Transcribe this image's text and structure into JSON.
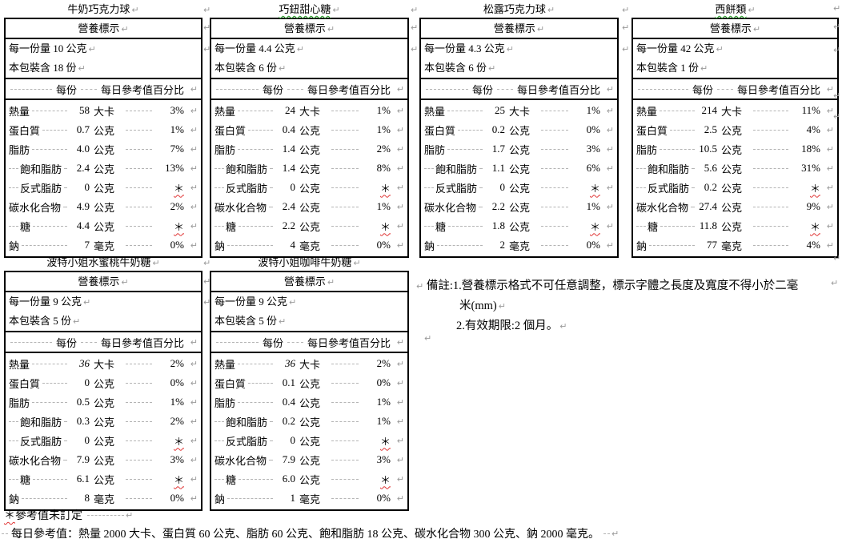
{
  "ui": {
    "pilcrow": "↵"
  },
  "labels": [
    {
      "title": "牛奶巧克力球",
      "title_grammar": false,
      "header": "營養標示",
      "serving_size": "每一份量 10 公克",
      "servings": "本包裝含 18 份",
      "col_per_serving": "每份",
      "col_daily_value": "每日參考值百分比",
      "rows": [
        {
          "name": "熱量",
          "value": "58",
          "unit": "大卡",
          "dv": "3%"
        },
        {
          "name": "蛋白質",
          "value": "0.7",
          "unit": "公克",
          "dv": "1%"
        },
        {
          "name": "脂肪",
          "value": "4.0",
          "unit": "公克",
          "dv": "7%"
        },
        {
          "name": "飽和脂肪",
          "value": "2.4",
          "unit": "公克",
          "dv": "13%",
          "indent": true
        },
        {
          "name": "反式脂肪",
          "value": "0",
          "unit": "公克",
          "dv": "＊",
          "indent": true,
          "star": true
        },
        {
          "name": "碳水化合物",
          "value": "4.9",
          "unit": "公克",
          "dv": "2%"
        },
        {
          "name": "糖",
          "value": "4.4",
          "unit": "公克",
          "dv": "＊",
          "indent": true,
          "star": true
        },
        {
          "name": "鈉",
          "value": "7",
          "unit": "毫克",
          "dv": "0%"
        }
      ]
    },
    {
      "title": "巧鈕甜心糖",
      "title_grammar": true,
      "header": "營養標示",
      "serving_size": "每一份量 4.4 公克",
      "servings": "本包裝含 6 份",
      "col_per_serving": "每份",
      "col_daily_value": "每日參考值百分比",
      "rows": [
        {
          "name": "熱量",
          "value": "24",
          "unit": "大卡",
          "dv": "1%"
        },
        {
          "name": "蛋白質",
          "value": "0.4",
          "unit": "公克",
          "dv": "1%"
        },
        {
          "name": "脂肪",
          "value": "1.4",
          "unit": "公克",
          "dv": "2%"
        },
        {
          "name": "飽和脂肪",
          "value": "1.4",
          "unit": "公克",
          "dv": "8%",
          "indent": true
        },
        {
          "name": "反式脂肪",
          "value": "0",
          "unit": "公克",
          "dv": "＊",
          "indent": true,
          "star": true
        },
        {
          "name": "碳水化合物",
          "value": "2.4",
          "unit": "公克",
          "dv": "1%"
        },
        {
          "name": "糖",
          "value": "2.2",
          "unit": "公克",
          "dv": "＊",
          "indent": true,
          "star": true
        },
        {
          "name": "鈉",
          "value": "4",
          "unit": "毫克",
          "dv": "0%"
        }
      ]
    },
    {
      "title": "松露巧克力球",
      "title_grammar": false,
      "header": "營養標示",
      "serving_size": "每一份量 4.3 公克",
      "servings": "本包裝含 6 份",
      "col_per_serving": "每份",
      "col_daily_value": "每日參考值百分比",
      "rows": [
        {
          "name": "熱量",
          "value": "25",
          "unit": "大卡",
          "dv": "1%"
        },
        {
          "name": "蛋白質",
          "value": "0.2",
          "unit": "公克",
          "dv": "0%"
        },
        {
          "name": "脂肪",
          "value": "1.7",
          "unit": "公克",
          "dv": "3%"
        },
        {
          "name": "飽和脂肪",
          "value": "1.1",
          "unit": "公克",
          "dv": "6%",
          "indent": true
        },
        {
          "name": "反式脂肪",
          "value": "0",
          "unit": "公克",
          "dv": "＊",
          "indent": true,
          "star": true
        },
        {
          "name": "碳水化合物",
          "value": "2.2",
          "unit": "公克",
          "dv": "1%"
        },
        {
          "name": "糖",
          "value": "1.8",
          "unit": "公克",
          "dv": "＊",
          "indent": true,
          "star": true
        },
        {
          "name": "鈉",
          "value": "2",
          "unit": "毫克",
          "dv": "0%"
        }
      ]
    },
    {
      "title": "西餅類",
      "title_grammar": true,
      "header": "營養標示",
      "serving_size": "每一份量 42 公克",
      "servings": "本包裝含 1 份",
      "col_per_serving": "每份",
      "col_daily_value": "每日參考值百分比",
      "rows": [
        {
          "name": "熱量",
          "value": "214",
          "unit": "大卡",
          "dv": "11%"
        },
        {
          "name": "蛋白質",
          "value": "2.5",
          "unit": "公克",
          "dv": "4%"
        },
        {
          "name": "脂肪",
          "value": "10.5",
          "unit": "公克",
          "dv": "18%"
        },
        {
          "name": "飽和脂肪",
          "value": "5.6",
          "unit": "公克",
          "dv": "31%",
          "indent": true
        },
        {
          "name": "反式脂肪",
          "value": "0.2",
          "unit": "公克",
          "dv": "＊",
          "indent": true,
          "star": true
        },
        {
          "name": "碳水化合物",
          "value": "27.4",
          "unit": "公克",
          "dv": "9%"
        },
        {
          "name": "糖",
          "value": "11.8",
          "unit": "公克",
          "dv": "＊",
          "indent": true,
          "star": true
        },
        {
          "name": "鈉",
          "value": "77",
          "unit": "毫克",
          "dv": "4%"
        }
      ]
    },
    {
      "title": "波特小姐水蜜桃牛奶糖",
      "title_grammar": false,
      "header": "營養標示",
      "serving_size": "每一份量 9 公克",
      "servings": "本包裝含 5 份",
      "col_per_serving": "每份",
      "col_daily_value": "每日參考值百分比",
      "rows": [
        {
          "name": "熱量",
          "value": "36",
          "unit": "大卡",
          "dv": "2%",
          "italic": true
        },
        {
          "name": "蛋白質",
          "value": "0",
          "unit": "公克",
          "dv": "0%"
        },
        {
          "name": "脂肪",
          "value": "0.5",
          "unit": "公克",
          "dv": "1%"
        },
        {
          "name": "飽和脂肪",
          "value": "0.3",
          "unit": "公克",
          "dv": "2%",
          "indent": true
        },
        {
          "name": "反式脂肪",
          "value": "0",
          "unit": "公克",
          "dv": "＊",
          "indent": true,
          "star": true
        },
        {
          "name": "碳水化合物",
          "value": "7.9",
          "unit": "公克",
          "dv": "3%"
        },
        {
          "name": "糖",
          "value": "6.1",
          "unit": "公克",
          "dv": "＊",
          "indent": true,
          "star": true
        },
        {
          "name": "鈉",
          "value": "8",
          "unit": "毫克",
          "dv": "0%"
        }
      ]
    },
    {
      "title": "波特小姐咖啡牛奶糖",
      "title_grammar": false,
      "header": "營養標示",
      "serving_size": "每一份量 9 公克",
      "servings": "本包裝含 5 份",
      "col_per_serving": "每份",
      "col_daily_value": "每日參考值百分比",
      "rows": [
        {
          "name": "熱量",
          "value": "36",
          "unit": "大卡",
          "dv": "2%",
          "italic": true
        },
        {
          "name": "蛋白質",
          "value": "0.1",
          "unit": "公克",
          "dv": "0%"
        },
        {
          "name": "脂肪",
          "value": "0.4",
          "unit": "公克",
          "dv": "1%"
        },
        {
          "name": "飽和脂肪",
          "value": "0.2",
          "unit": "公克",
          "dv": "1%",
          "indent": true
        },
        {
          "name": "反式脂肪",
          "value": "0",
          "unit": "公克",
          "dv": "＊",
          "indent": true,
          "star": true
        },
        {
          "name": "碳水化合物",
          "value": "7.9",
          "unit": "公克",
          "dv": "3%"
        },
        {
          "name": "糖",
          "value": "6.0",
          "unit": "公克",
          "dv": "＊",
          "indent": true,
          "star": true
        },
        {
          "name": "鈉",
          "value": "1",
          "unit": "毫克",
          "dv": "0%"
        }
      ]
    }
  ],
  "remarks": {
    "line1": "備註:1.營養標示格式不可任意調整，標示字體之長度及寬度不得小於二毫",
    "line2": "米(mm)",
    "line3": "2.有效期限:2 個月。"
  },
  "footnotes": {
    "star_symbol": "＊",
    "star_text": "參考值未訂定",
    "daily_note": "每日參考值：熱量 2000 大卡、蛋白質 60 公克、脂肪 60 公克、飽和脂肪 18 公克、碳水化合物 300 公克、鈉 2000 毫克。"
  }
}
